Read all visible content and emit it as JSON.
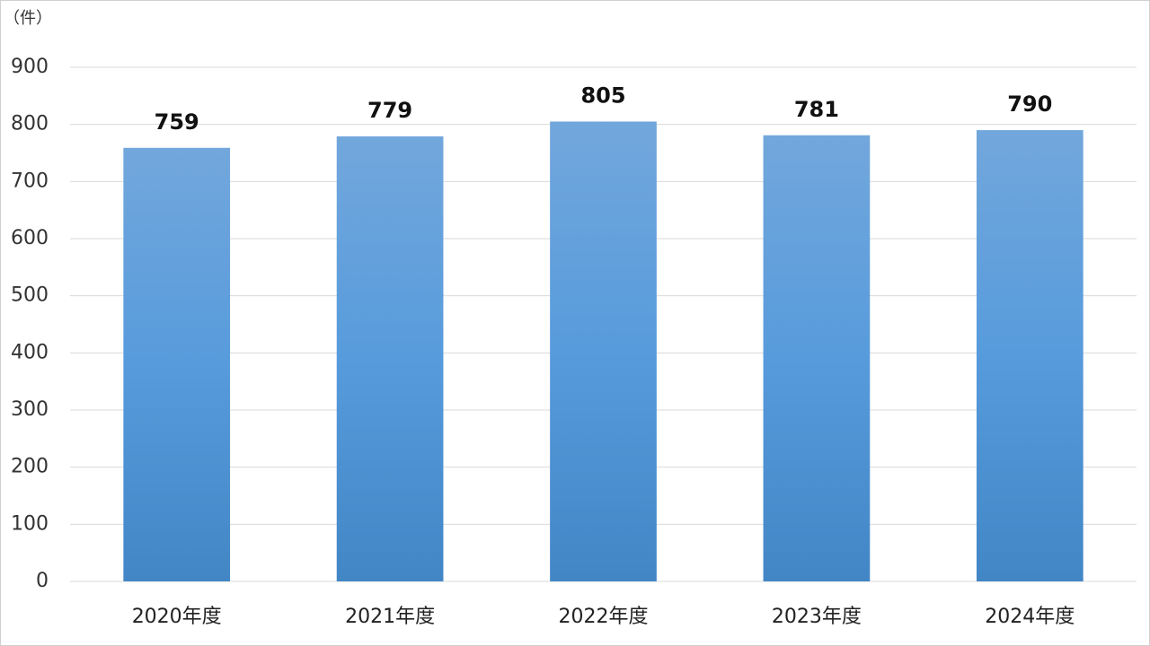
{
  "chart_data": {
    "type": "bar",
    "y_label": "（件）",
    "categories": [
      "2020年度",
      "2021年度",
      "2022年度",
      "2023年度",
      "2024年度"
    ],
    "values": [
      759,
      779,
      805,
      781,
      790
    ],
    "color": "#5b9bd5",
    "ylim": [
      0,
      900
    ],
    "yticks": [
      0,
      100,
      200,
      300,
      400,
      500,
      600,
      700,
      800,
      900
    ],
    "grid": true
  }
}
